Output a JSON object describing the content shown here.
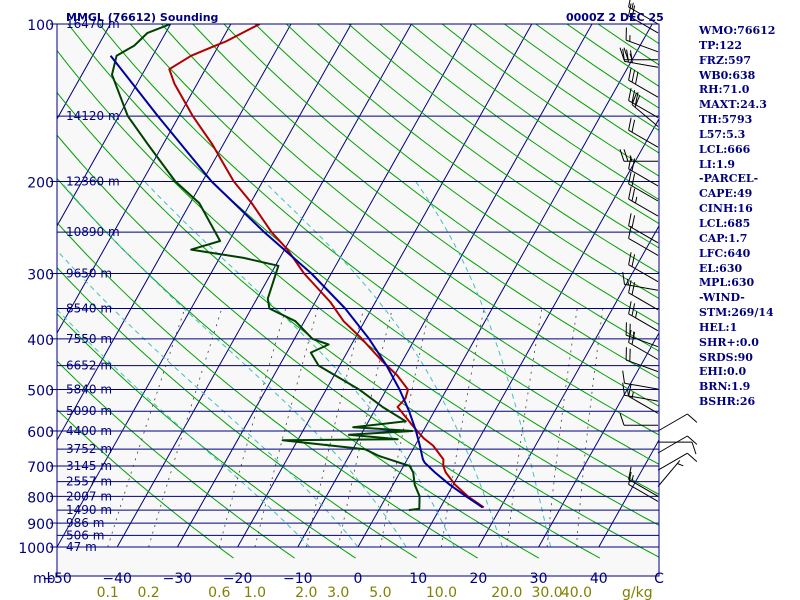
{
  "header": {
    "station": "MMGL (76612) Sounding",
    "datetime": "0000Z  2 DEC 25"
  },
  "indices": [
    "WMO:76612",
    "TP:122",
    "FRZ:597",
    "WB0:638",
    "RH:71.0",
    "MAXT:24.3",
    "TH:5793",
    "L57:5.3",
    "LCL:666",
    "LI:1.9",
    "-PARCEL-",
    "CAPE:49",
    "CINH:16",
    "LCL:685",
    "CAP:1.7",
    "LFC:640",
    "EL:630",
    "MPL:630",
    "-WIND-",
    "STM:269/14",
    "HEL:1",
    "SHR+:0.0",
    "SRDS:90",
    "EHI:0.0",
    "BRN:1.9",
    "BSHR:26"
  ],
  "colors": {
    "background": "#f8f8f8",
    "isobar": "#000080",
    "isotherm": "#000080",
    "dry_adiabat": "#00a000",
    "moist_adiabat": "#40c0c0",
    "mixing_ratio": "#404040",
    "temperature": "#b00000",
    "dewpoint": "#004000",
    "parcel": "#0000a0",
    "wind": "#000000",
    "text": "#000080",
    "mixing_label": "#808000"
  },
  "chart_data": {
    "type": "line",
    "title": "MMGL (76612) Sounding",
    "xlabel": "",
    "ylabel": "mb",
    "xlim": [
      -50,
      50
    ],
    "ylim": [
      1000,
      100
    ],
    "log_y": true,
    "grid": true,
    "pressure_ticks": [
      100,
      200,
      300,
      400,
      500,
      600,
      700,
      800,
      900,
      1000
    ],
    "pressure_labels": [
      "100",
      "200",
      "300",
      "400",
      "500",
      "600",
      "700",
      "800",
      "900",
      "1000"
    ],
    "height_labels": [
      {
        "p": 100,
        "label": "16470 m"
      },
      {
        "p": 150,
        "label": "14120 m"
      },
      {
        "p": 200,
        "label": "12360 m"
      },
      {
        "p": 250,
        "label": "10890 m"
      },
      {
        "p": 300,
        "label": "9650 m"
      },
      {
        "p": 350,
        "label": "8540 m"
      },
      {
        "p": 400,
        "label": "7550 m"
      },
      {
        "p": 450,
        "label": "6652 m"
      },
      {
        "p": 500,
        "label": "5840 m"
      },
      {
        "p": 550,
        "label": "5090 m"
      },
      {
        "p": 600,
        "label": "4400 m"
      },
      {
        "p": 650,
        "label": "3752 m"
      },
      {
        "p": 700,
        "label": "3145 m"
      },
      {
        "p": 750,
        "label": "2557 m"
      },
      {
        "p": 800,
        "label": "2007 m"
      },
      {
        "p": 850,
        "label": "1490 m"
      },
      {
        "p": 900,
        "label": "986 m"
      },
      {
        "p": 950,
        "label": "506 m"
      },
      {
        "p": 1000,
        "label": "47 m"
      }
    ],
    "x_ticks": [
      -50,
      -40,
      -30,
      -20,
      -10,
      0,
      10,
      20,
      30,
      40
    ],
    "x_tick_labels": [
      "−50",
      "−40",
      "−30",
      "−20",
      "−10",
      "0",
      "10",
      "20",
      "30",
      "40"
    ],
    "x_final_label": "C",
    "pressure_unit": "mb",
    "mixing_ratio_labels": [
      "0.1",
      "0.2",
      "0.6",
      "1.0",
      "2.0",
      "3.0",
      "5.0",
      "10.0",
      "20.0",
      "30.0",
      "40.0"
    ],
    "mixing_ratio_unit": "g/kg",
    "mixing_ratios": [
      0.1,
      0.2,
      0.6,
      1.0,
      2.0,
      3.0,
      5.0,
      10.0,
      20.0,
      30.0,
      40.0
    ],
    "series": [
      {
        "key": "temperature",
        "points": [
          {
            "p": 840,
            "t": 17.2
          },
          {
            "p": 800,
            "t": 13.5
          },
          {
            "p": 760,
            "t": 10.3
          },
          {
            "p": 720,
            "t": 7.6
          },
          {
            "p": 700,
            "t": 6.6
          },
          {
            "p": 680,
            "t": 6.0
          },
          {
            "p": 640,
            "t": 3.0
          },
          {
            "p": 620,
            "t": 0.8
          },
          {
            "p": 600,
            "t": -1.0
          },
          {
            "p": 580,
            "t": -2.8
          },
          {
            "p": 540,
            "t": -6.5
          },
          {
            "p": 520,
            "t": -6.0
          },
          {
            "p": 500,
            "t": -6.4
          },
          {
            "p": 470,
            "t": -9.5
          },
          {
            "p": 440,
            "t": -13.5
          },
          {
            "p": 400,
            "t": -18.8
          },
          {
            "p": 370,
            "t": -23.5
          },
          {
            "p": 340,
            "t": -27.5
          },
          {
            "p": 300,
            "t": -34.5
          },
          {
            "p": 270,
            "t": -39.5
          },
          {
            "p": 250,
            "t": -43.8
          },
          {
            "p": 220,
            "t": -49.8
          },
          {
            "p": 200,
            "t": -54.8
          },
          {
            "p": 170,
            "t": -61.8
          },
          {
            "p": 150,
            "t": -67.7
          },
          {
            "p": 130,
            "t": -73.8
          },
          {
            "p": 122,
            "t": -76.0
          },
          {
            "p": 115,
            "t": -73.6
          },
          {
            "p": 110,
            "t": -70.5
          },
          {
            "p": 108,
            "t": -69.2
          },
          {
            "p": 100,
            "t": -65.2
          }
        ]
      },
      {
        "key": "dewpoint",
        "points": [
          {
            "p": 850,
            "t": 5.0
          },
          {
            "p": 845,
            "t": 6.6
          },
          {
            "p": 800,
            "t": 5.5
          },
          {
            "p": 760,
            "t": 3.6
          },
          {
            "p": 720,
            "t": 2.2
          },
          {
            "p": 700,
            "t": 1.0
          },
          {
            "p": 670,
            "t": -5.0
          },
          {
            "p": 650,
            "t": -8.0
          },
          {
            "p": 625,
            "t": -22.5
          },
          {
            "p": 622,
            "t": -3.5
          },
          {
            "p": 610,
            "t": -12.0
          },
          {
            "p": 600,
            "t": -1.8
          },
          {
            "p": 590,
            "t": -12.0
          },
          {
            "p": 575,
            "t": -3.8
          },
          {
            "p": 540,
            "t": -9.0
          },
          {
            "p": 500,
            "t": -14.5
          },
          {
            "p": 450,
            "t": -23.5
          },
          {
            "p": 425,
            "t": -26.0
          },
          {
            "p": 410,
            "t": -23.8
          },
          {
            "p": 400,
            "t": -27.0
          },
          {
            "p": 370,
            "t": -31.5
          },
          {
            "p": 350,
            "t": -37.0
          },
          {
            "p": 335,
            "t": -38.2
          },
          {
            "p": 290,
            "t": -39.5
          },
          {
            "p": 280,
            "t": -46.0
          },
          {
            "p": 270,
            "t": -55.5
          },
          {
            "p": 260,
            "t": -51.5
          },
          {
            "p": 220,
            "t": -58.5
          },
          {
            "p": 200,
            "t": -64.5
          },
          {
            "p": 170,
            "t": -72.5
          },
          {
            "p": 150,
            "t": -78.5
          },
          {
            "p": 125,
            "t": -85.0
          },
          {
            "p": 115,
            "t": -86.0
          },
          {
            "p": 110,
            "t": -84.0
          },
          {
            "p": 104,
            "t": -83.0
          },
          {
            "p": 100,
            "t": -80.0
          }
        ]
      },
      {
        "key": "parcel",
        "points": [
          {
            "p": 840,
            "t": 17.0
          },
          {
            "p": 800,
            "t": 13.2
          },
          {
            "p": 760,
            "t": 9.4
          },
          {
            "p": 720,
            "t": 5.8
          },
          {
            "p": 690,
            "t": 3.2
          },
          {
            "p": 680,
            "t": 2.6
          },
          {
            "p": 640,
            "t": 0.8
          },
          {
            "p": 600,
            "t": -1.2
          },
          {
            "p": 550,
            "t": -4.2
          },
          {
            "p": 500,
            "t": -7.8
          },
          {
            "p": 450,
            "t": -12.2
          },
          {
            "p": 400,
            "t": -17.6
          },
          {
            "p": 350,
            "t": -24.4
          },
          {
            "p": 300,
            "t": -33.3
          },
          {
            "p": 250,
            "t": -45.0
          },
          {
            "p": 200,
            "t": -58.5
          },
          {
            "p": 150,
            "t": -73.5
          },
          {
            "p": 115,
            "t": -87.0
          }
        ]
      }
    ],
    "winds": [
      {
        "p": 100,
        "dir": 300,
        "spd": 15
      },
      {
        "p": 104,
        "dir": 300,
        "spd": 20
      },
      {
        "p": 113,
        "dir": 290,
        "spd": 15
      },
      {
        "p": 117,
        "dir": 270,
        "spd": 25
      },
      {
        "p": 121,
        "dir": 280,
        "spd": 30
      },
      {
        "p": 138,
        "dir": 300,
        "spd": 30
      },
      {
        "p": 151,
        "dir": 300,
        "spd": 30
      },
      {
        "p": 157,
        "dir": 310,
        "spd": 20
      },
      {
        "p": 172,
        "dir": 300,
        "spd": 20
      },
      {
        "p": 183,
        "dir": 270,
        "spd": 25
      },
      {
        "p": 204,
        "dir": 300,
        "spd": 20
      },
      {
        "p": 218,
        "dir": 300,
        "spd": 20
      },
      {
        "p": 233,
        "dir": 300,
        "spd": 25
      },
      {
        "p": 262,
        "dir": 300,
        "spd": 20
      },
      {
        "p": 277,
        "dir": 300,
        "spd": 10
      },
      {
        "p": 311,
        "dir": 300,
        "spd": 20
      },
      {
        "p": 323,
        "dir": 280,
        "spd": 15
      },
      {
        "p": 352,
        "dir": 300,
        "spd": 20
      },
      {
        "p": 386,
        "dir": 300,
        "spd": 25
      },
      {
        "p": 414,
        "dir": 290,
        "spd": 25
      },
      {
        "p": 438,
        "dir": 300,
        "spd": 20
      },
      {
        "p": 462,
        "dir": 290,
        "spd": 20
      },
      {
        "p": 499,
        "dir": 280,
        "spd": 10
      },
      {
        "p": 526,
        "dir": 280,
        "spd": 15
      },
      {
        "p": 555,
        "dir": 300,
        "spd": 15
      },
      {
        "p": 585,
        "dir": 270,
        "spd": 10
      },
      {
        "p": 600,
        "dir": 60,
        "spd": 10
      },
      {
        "p": 630,
        "dir": 90,
        "spd": 10
      },
      {
        "p": 661,
        "dir": 60,
        "spd": 10
      },
      {
        "p": 713,
        "dir": 60,
        "spd": 10
      },
      {
        "p": 766,
        "dir": 40,
        "spd": 5
      },
      {
        "p": 800,
        "dir": 300,
        "spd": 15
      },
      {
        "p": 818,
        "dir": 300,
        "spd": 10
      }
    ]
  }
}
